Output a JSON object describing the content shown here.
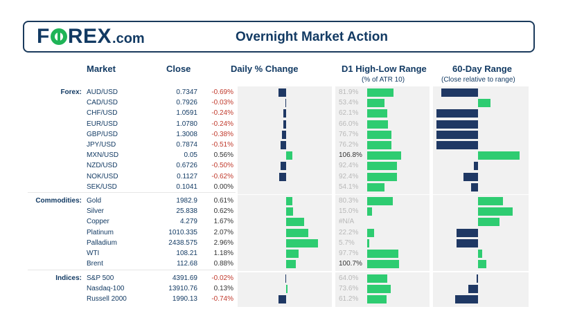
{
  "header": {
    "logo_text_1": "F",
    "logo_text_2": "REX",
    "logo_dotcom": ".com",
    "title": "Overnight Market Action"
  },
  "columns": {
    "market": "Market",
    "close": "Close",
    "daily": "Daily % Change",
    "d1_range": "D1 High-Low Range",
    "d1_range_sub": "(% of ATR 10)",
    "range60": "60-Day Range",
    "range60_sub": "(Close relative to range)"
  },
  "colors": {
    "positive": "#2ecc71",
    "negative": "#1f3864",
    "range_bar": "#2ecc71",
    "panel": "#f1f1f1"
  },
  "chart_data": {
    "type": "table",
    "groups": [
      {
        "label": "Forex:",
        "rows": [
          {
            "market": "AUD/USD",
            "close": "0.7347",
            "change": "-0.69%",
            "change_val": -0.69,
            "range": "81.9%",
            "range_val": 81.9,
            "range60": -0.88
          },
          {
            "market": "CAD/USD",
            "close": "0.7926",
            "change": "-0.03%",
            "change_val": -0.03,
            "range": "53.4%",
            "range_val": 53.4,
            "range60": 0.3
          },
          {
            "market": "CHF/USD",
            "close": "1.0591",
            "change": "-0.24%",
            "change_val": -0.24,
            "range": "62.1%",
            "range_val": 62.1,
            "range60": -1.0
          },
          {
            "market": "EUR/USD",
            "close": "1.0780",
            "change": "-0.24%",
            "change_val": -0.24,
            "range": "66.0%",
            "range_val": 66.0,
            "range60": -1.0
          },
          {
            "market": "GBP/USD",
            "close": "1.3008",
            "change": "-0.38%",
            "change_val": -0.38,
            "range": "76.7%",
            "range_val": 76.7,
            "range60": -1.0
          },
          {
            "market": "JPY/USD",
            "close": "0.7874",
            "change": "-0.51%",
            "change_val": -0.51,
            "range": "76.2%",
            "range_val": 76.2,
            "range60": -1.0
          },
          {
            "market": "MXN/USD",
            "close": "0.05",
            "change": "0.56%",
            "change_val": 0.56,
            "range": "106.8%",
            "range_val": 106.8,
            "range60": 1.0
          },
          {
            "market": "NZD/USD",
            "close": "0.6726",
            "change": "-0.50%",
            "change_val": -0.5,
            "range": "92.4%",
            "range_val": 92.4,
            "range60": -0.1
          },
          {
            "market": "NOK/USD",
            "close": "0.1127",
            "change": "-0.62%",
            "change_val": -0.62,
            "range": "92.4%",
            "range_val": 92.4,
            "range60": -0.35
          },
          {
            "market": "SEK/USD",
            "close": "0.1041",
            "change": "0.00%",
            "change_val": 0.0,
            "range": "54.1%",
            "range_val": 54.1,
            "range60": -0.17
          }
        ]
      },
      {
        "label": "Commodities:",
        "rows": [
          {
            "market": "Gold",
            "close": "1982.9",
            "change": "0.61%",
            "change_val": 0.61,
            "range": "80.3%",
            "range_val": 80.3,
            "range60": 0.6
          },
          {
            "market": "Silver",
            "close": "25.838",
            "change": "0.62%",
            "change_val": 0.62,
            "range": "15.0%",
            "range_val": 15.0,
            "range60": 0.83
          },
          {
            "market": "Copper",
            "close": "4.279",
            "change": "1.67%",
            "change_val": 1.67,
            "range": "#N/A",
            "range_val": 0,
            "range60": 0.52
          },
          {
            "market": "Platinum",
            "close": "1010.335",
            "change": "2.07%",
            "change_val": 2.07,
            "range": "22.2%",
            "range_val": 22.2,
            "range60": -0.52
          },
          {
            "market": "Palladium",
            "close": "2438.575",
            "change": "2.96%",
            "change_val": 2.96,
            "range": "5.7%",
            "range_val": 5.7,
            "range60": -0.52
          },
          {
            "market": "WTI",
            "close": "108.21",
            "change": "1.18%",
            "change_val": 1.18,
            "range": "97.7%",
            "range_val": 97.7,
            "range60": 0.1
          },
          {
            "market": "Brent",
            "close": "112.68",
            "change": "0.88%",
            "change_val": 0.88,
            "range": "100.7%",
            "range_val": 100.7,
            "range60": 0.2
          }
        ]
      },
      {
        "label": "Indices:",
        "rows": [
          {
            "market": "S&P 500",
            "close": "4391.69",
            "change": "-0.02%",
            "change_val": -0.02,
            "range": "64.0%",
            "range_val": 64.0,
            "range60": -0.04
          },
          {
            "market": "Nasdaq-100",
            "close": "13910.76",
            "change": "0.13%",
            "change_val": 0.13,
            "range": "73.6%",
            "range_val": 73.6,
            "range60": -0.23
          },
          {
            "market": "Russell 2000",
            "close": "1990.13",
            "change": "-0.74%",
            "change_val": -0.74,
            "range": "61.2%",
            "range_val": 61.2,
            "range60": -0.55
          }
        ]
      }
    ],
    "daily_axis": [
      -1.0,
      3.0
    ],
    "range_axis": [
      0,
      110
    ],
    "range60_axis": [
      -1,
      1
    ]
  }
}
